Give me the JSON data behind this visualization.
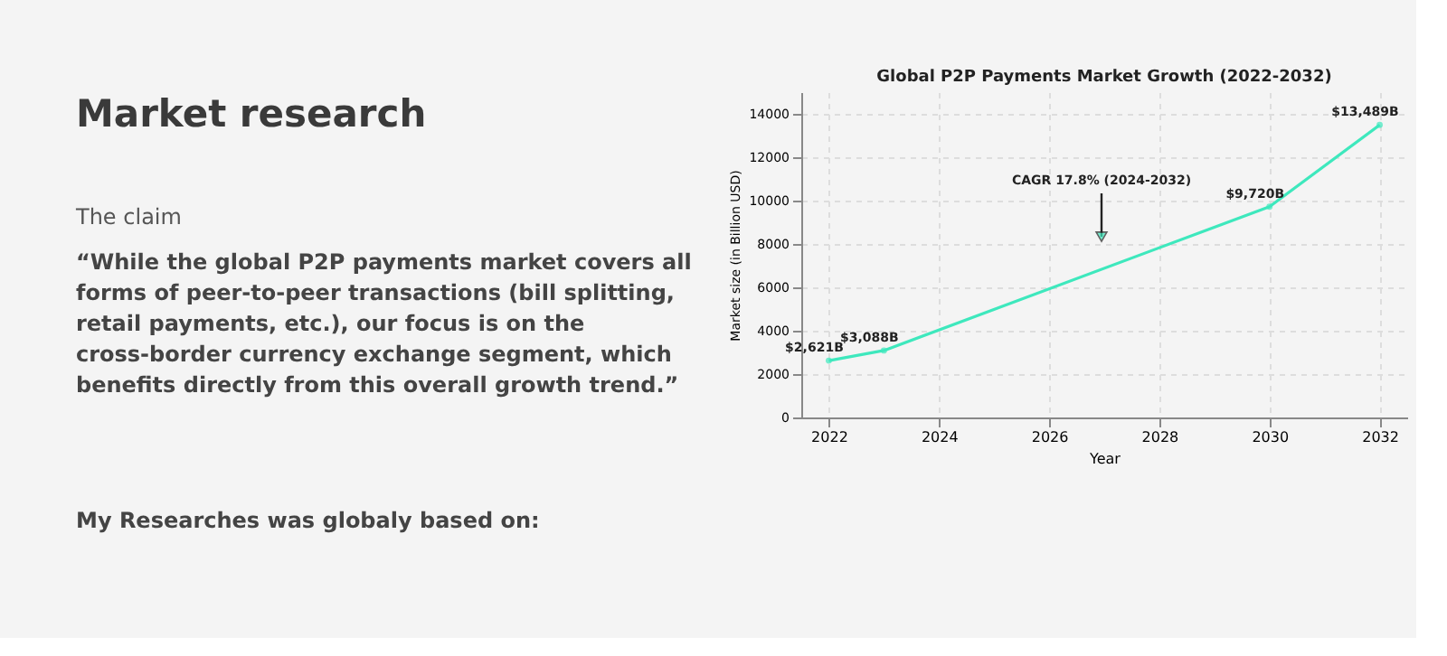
{
  "chart_data": {
    "type": "line",
    "title": "Global P2P Payments Market Growth (2022-2032)",
    "xlabel": "Year",
    "ylabel": "Market size (in Billion USD)",
    "x": [
      2022,
      2023,
      2030,
      2032
    ],
    "series": [
      {
        "color": "#3ee8bd",
        "values": [
          2621,
          3088,
          9720,
          13489
        ],
        "value_labels": [
          "$2,621B",
          "$3,088B",
          "$9,720B",
          "$13,489B"
        ]
      }
    ],
    "xlim": [
      2021.5,
      2032.5
    ],
    "xticks": [
      2022,
      2024,
      2026,
      2028,
      2030,
      2032
    ],
    "ylim": [
      0,
      15000
    ],
    "yticks": [
      0,
      2000,
      4000,
      6000,
      8000,
      10000,
      12000,
      14000
    ],
    "grid": true,
    "marker": "circle",
    "line_style": "solid",
    "annotations": [
      "Market research",
      "The claim",
      "“While the global P2P payments market covers all forms of peer-to-peer transactions (bill splitting, retail payments, etc.), our focus is on the cross-border currency exchange segment, which benefits directly from this overall growth trend.”",
      "My Researches was globaly  based on:",
      "CAGR 17.8% (2024-2032)"
    ]
  }
}
